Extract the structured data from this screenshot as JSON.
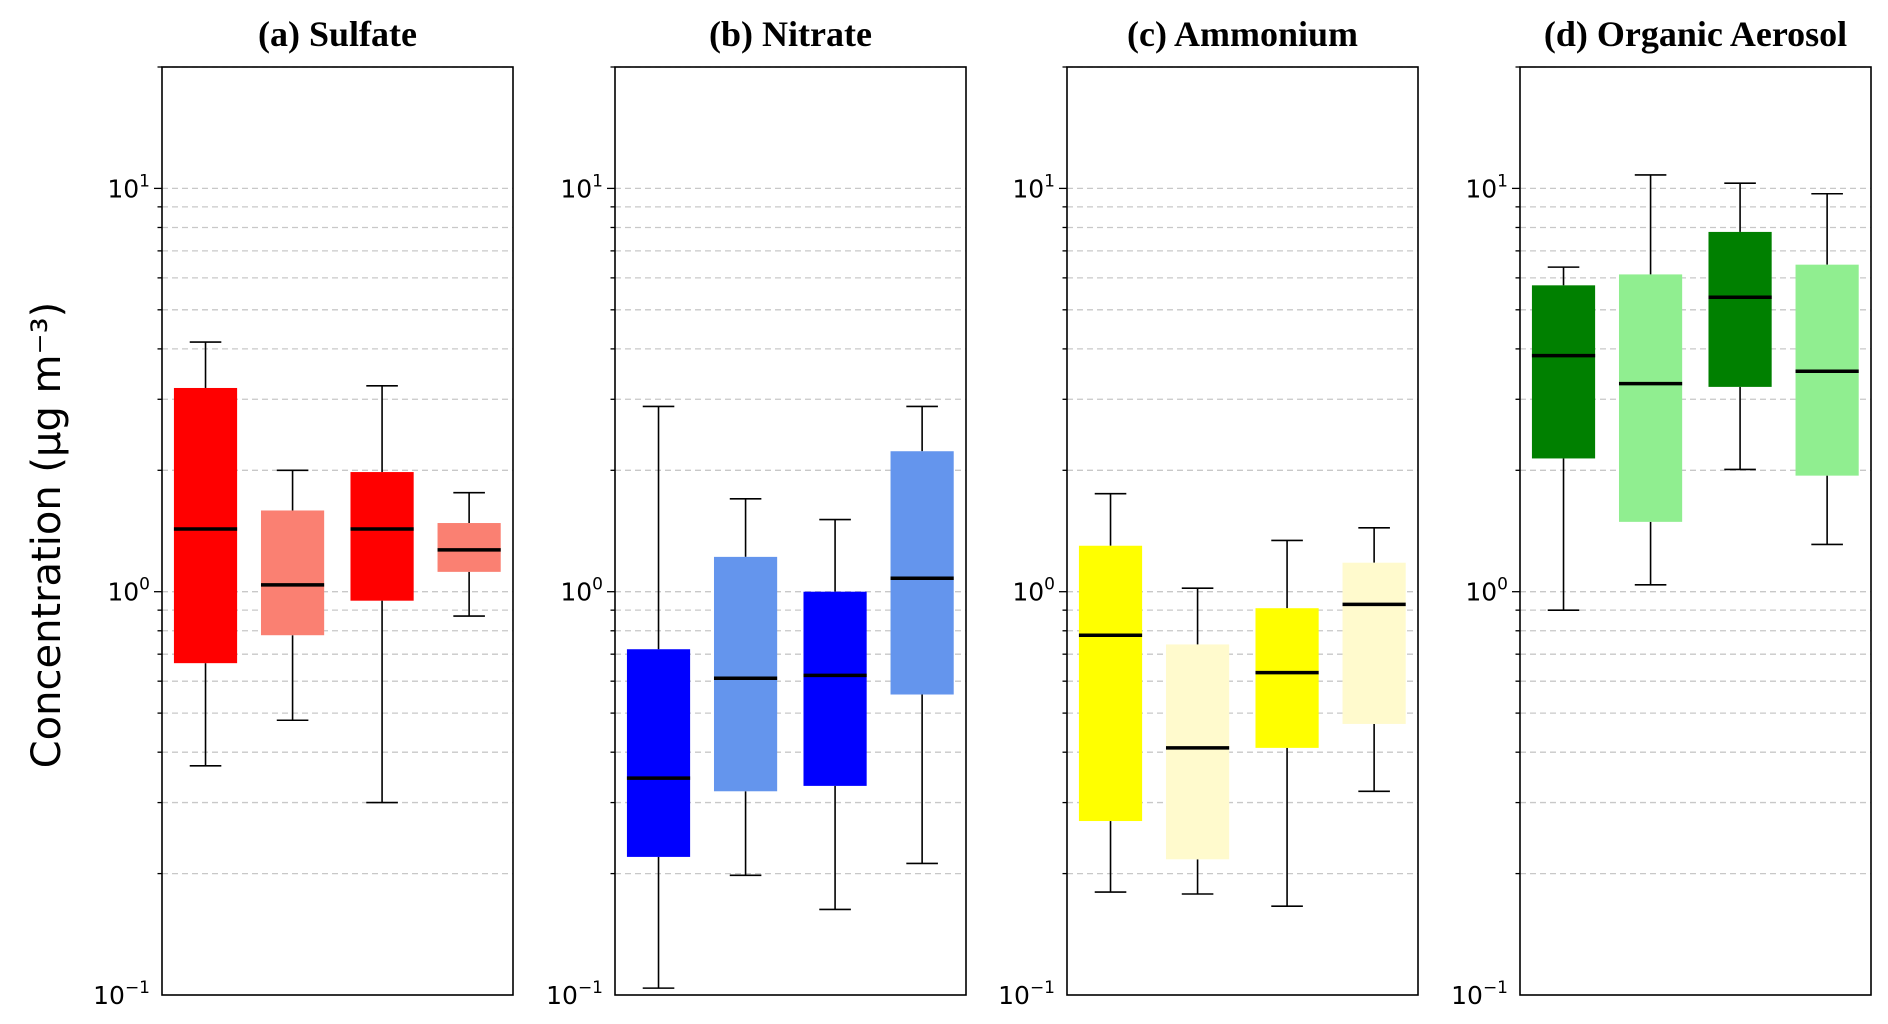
{
  "chart_data": {
    "type": "box",
    "ylabel": "Concentration (μg m⁻³)",
    "yscale": "log",
    "ylim": [
      0.1,
      20
    ],
    "yticks": [
      {
        "base": "10",
        "exp": "−1",
        "value": 0.1
      },
      {
        "base": "10",
        "exp": "0",
        "value": 1
      },
      {
        "base": "10",
        "exp": "1",
        "value": 10
      }
    ],
    "grid": "dashed horizontal at major and minor ticks",
    "panels": [
      {
        "title": "(a) Sulfate",
        "colors": [
          "#ff0000",
          "#fa8072",
          "#ff0000",
          "#fa8072"
        ],
        "boxes": [
          {
            "whislo": 0.37,
            "q1": 0.665,
            "med": 1.43,
            "q3": 3.2,
            "whishi": 4.16
          },
          {
            "whislo": 0.48,
            "q1": 0.78,
            "med": 1.04,
            "q3": 1.59,
            "whishi": 2.0
          },
          {
            "whislo": 0.3,
            "q1": 0.95,
            "med": 1.43,
            "q3": 1.98,
            "whishi": 3.24
          },
          {
            "whislo": 0.87,
            "q1": 1.12,
            "med": 1.27,
            "q3": 1.48,
            "whishi": 1.76
          }
        ]
      },
      {
        "title": "(b) Nitrate",
        "colors": [
          "#0000ff",
          "#6495ed",
          "#0000ff",
          "#6495ed"
        ],
        "boxes": [
          {
            "whislo": 0.104,
            "q1": 0.22,
            "med": 0.345,
            "q3": 0.72,
            "whishi": 2.88
          },
          {
            "whislo": 0.198,
            "q1": 0.32,
            "med": 0.61,
            "q3": 1.22,
            "whishi": 1.7
          },
          {
            "whislo": 0.163,
            "q1": 0.33,
            "med": 0.62,
            "q3": 1.0,
            "whishi": 1.51
          },
          {
            "whislo": 0.212,
            "q1": 0.556,
            "med": 1.08,
            "q3": 2.23,
            "whishi": 2.88
          }
        ]
      },
      {
        "title": "(c) Ammonium",
        "colors": [
          "#ffff00",
          "#fffacd",
          "#ffff00",
          "#fffacd"
        ],
        "boxes": [
          {
            "whislo": 0.18,
            "q1": 0.27,
            "med": 0.78,
            "q3": 1.3,
            "whishi": 1.75
          },
          {
            "whislo": 0.178,
            "q1": 0.217,
            "med": 0.41,
            "q3": 0.74,
            "whishi": 1.02
          },
          {
            "whislo": 0.166,
            "q1": 0.41,
            "med": 0.63,
            "q3": 0.91,
            "whishi": 1.34
          },
          {
            "whislo": 0.32,
            "q1": 0.47,
            "med": 0.93,
            "q3": 1.18,
            "whishi": 1.44
          }
        ]
      },
      {
        "title": "(d) Organic Aerosol",
        "colors": [
          "#008000",
          "#90ee90",
          "#008000",
          "#90ee90"
        ],
        "boxes": [
          {
            "whislo": 0.9,
            "q1": 2.14,
            "med": 3.85,
            "q3": 5.75,
            "whishi": 6.38
          },
          {
            "whislo": 1.04,
            "q1": 1.49,
            "med": 3.28,
            "q3": 6.12,
            "whishi": 10.8
          },
          {
            "whislo": 2.01,
            "q1": 3.22,
            "med": 5.37,
            "q3": 7.8,
            "whishi": 10.3
          },
          {
            "whislo": 1.31,
            "q1": 1.94,
            "med": 3.52,
            "q3": 6.47,
            "whishi": 9.7
          }
        ]
      }
    ]
  }
}
